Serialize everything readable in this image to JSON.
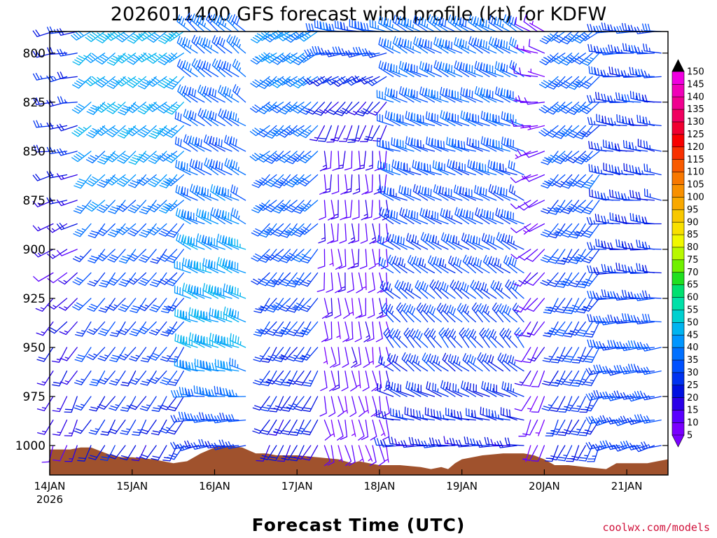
{
  "chart_data": {
    "type": "wind-barb time-height profile",
    "title": "2026011400 GFS forecast wind profile (kt) for KDFW",
    "xlabel": "Forecast Time (UTC)",
    "ylabel": "",
    "credit": "coolwx.com/models",
    "xlim_hours": [
      0,
      180
    ],
    "ylim_hPa": [
      1015,
      789
    ],
    "x_ticks": [
      {
        "label": "14JAN",
        "sublabel": "2026",
        "hour": 0
      },
      {
        "label": "15JAN",
        "sublabel": "",
        "hour": 24
      },
      {
        "label": "16JAN",
        "sublabel": "",
        "hour": 48
      },
      {
        "label": "17JAN",
        "sublabel": "",
        "hour": 72
      },
      {
        "label": "18JAN",
        "sublabel": "",
        "hour": 96
      },
      {
        "label": "19JAN",
        "sublabel": "",
        "hour": 120
      },
      {
        "label": "20JAN",
        "sublabel": "",
        "hour": 144
      },
      {
        "label": "21JAN",
        "sublabel": "",
        "hour": 168
      }
    ],
    "y_ticks": [
      {
        "label": "800",
        "p": 800
      },
      {
        "label": "825",
        "p": 825
      },
      {
        "label": "850",
        "p": 850
      },
      {
        "label": "875",
        "p": 875
      },
      {
        "label": "900",
        "p": 900
      },
      {
        "label": "925",
        "p": 925
      },
      {
        "label": "950",
        "p": 950
      },
      {
        "label": "975",
        "p": 975
      },
      {
        "label": "1000",
        "p": 1000
      }
    ],
    "colorbar": {
      "units": "kt",
      "levels": [
        "5",
        "10",
        "15",
        "20",
        "25",
        "30",
        "35",
        "40",
        "45",
        "50",
        "55",
        "60",
        "65",
        "70",
        "75",
        "80",
        "85",
        "90",
        "95",
        "100",
        "105",
        "110",
        "115",
        "120",
        "125",
        "130",
        "135",
        "140",
        "145",
        "150"
      ],
      "colors": [
        "#7a00ff",
        "#5a00ff",
        "#2a00e8",
        "#0010e0",
        "#0032f0",
        "#0050ff",
        "#0070ff",
        "#0096ff",
        "#00b4f0",
        "#00d0d0",
        "#00e0a8",
        "#00e070",
        "#20e020",
        "#70f000",
        "#b8f800",
        "#f0f800",
        "#f8e000",
        "#f8c800",
        "#f8a800",
        "#f89000",
        "#f87800",
        "#f85a00",
        "#f83000",
        "#f80000",
        "#f00030",
        "#f00060",
        "#f00090",
        "#f000b8",
        "#f000e0"
      ],
      "extend": "both"
    },
    "terrain_color": "#a0522d",
    "surface_pressure_hPa": [
      [
        0,
        1002
      ],
      [
        6,
        1002
      ],
      [
        9,
        1001
      ],
      [
        12,
        1001
      ],
      [
        15,
        1003
      ],
      [
        18,
        1005
      ],
      [
        21,
        1006
      ],
      [
        24,
        1006
      ],
      [
        30,
        1007
      ],
      [
        33,
        1008
      ],
      [
        36,
        1009
      ],
      [
        40,
        1008
      ],
      [
        44,
        1004
      ],
      [
        48,
        1001
      ],
      [
        52,
        1000
      ],
      [
        56,
        1001
      ],
      [
        60,
        1004
      ],
      [
        63,
        1004
      ],
      [
        66,
        1005
      ],
      [
        69,
        1005
      ],
      [
        72,
        1005
      ],
      [
        78,
        1006
      ],
      [
        84,
        1007
      ],
      [
        88,
        1009
      ],
      [
        90,
        1008
      ],
      [
        93,
        1009
      ],
      [
        96,
        1010
      ],
      [
        102,
        1010
      ],
      [
        108,
        1011
      ],
      [
        111,
        1012
      ],
      [
        114,
        1011
      ],
      [
        116,
        1012
      ],
      [
        118,
        1009
      ],
      [
        120,
        1007
      ],
      [
        126,
        1005
      ],
      [
        132,
        1004
      ],
      [
        138,
        1004
      ],
      [
        141,
        1005
      ],
      [
        144,
        1007
      ],
      [
        147,
        1010
      ],
      [
        151,
        1010
      ],
      [
        156,
        1011
      ],
      [
        162,
        1012
      ],
      [
        165,
        1009
      ],
      [
        168,
        1009
      ],
      [
        174,
        1009
      ],
      [
        177,
        1008
      ],
      [
        180,
        1007
      ]
    ],
    "wind_hours": [
      1,
      5,
      8,
      12,
      16,
      19,
      22,
      25,
      28,
      31,
      34,
      37,
      39,
      41,
      43,
      45,
      47,
      49,
      51,
      53,
      55,
      57,
      64,
      66,
      68,
      70,
      72,
      74,
      76,
      78,
      80,
      82,
      84,
      86,
      88,
      90,
      92,
      94,
      96,
      98,
      100,
      102,
      104,
      106,
      108,
      110,
      112,
      114,
      116,
      118,
      120,
      122,
      124,
      126,
      128,
      130,
      132,
      134,
      136,
      138,
      140,
      142,
      144,
      148,
      150,
      152,
      154,
      156,
      158,
      160,
      162,
      164,
      166,
      168,
      170,
      172,
      174,
      176,
      178
    ],
    "wind_levels_hPa": [
      789,
      800,
      812,
      825,
      837,
      850,
      862,
      875,
      887,
      900,
      912,
      925,
      937,
      950,
      962,
      975,
      987,
      1000
    ],
    "segments": [
      {
        "h0": 0,
        "h1": 10,
        "dir": [
          260,
          260,
          240,
          215,
          200
        ],
        "spd": [
          22,
          22,
          12,
          18,
          12
        ]
      },
      {
        "h0": 10,
        "h1": 40,
        "dir": [
          232,
          226,
          221,
          216,
          210
        ],
        "spd": [
          44,
          40,
          30,
          26,
          20
        ]
      },
      {
        "h0": 40,
        "h1": 58,
        "dir": [
          310,
          300,
          295,
          290,
          260
        ],
        "spd": [
          34,
          30,
          40,
          44,
          24
        ]
      },
      {
        "h0": 63,
        "h1": 80,
        "dir": [
          235,
          228,
          222,
          215,
          208
        ],
        "spd": [
          38,
          32,
          30,
          24,
          18
        ]
      },
      {
        "h0": 80,
        "h1": 100,
        "dir": [
          280,
          180,
          175,
          170,
          165
        ],
        "spd": [
          30,
          12,
          10,
          10,
          8
        ]
      },
      {
        "h0": 100,
        "h1": 140,
        "dir": [
          300,
          290,
          300,
          320,
          270
        ],
        "spd": [
          34,
          30,
          28,
          26,
          20
        ]
      },
      {
        "h0": 140,
        "h1": 145,
        "dir": [
          300,
          250,
          230,
          210,
          200
        ],
        "spd": [
          8,
          8,
          10,
          12,
          8
        ]
      },
      {
        "h0": 145,
        "h1": 162,
        "dir": [
          230,
          225,
          215,
          210,
          205
        ],
        "spd": [
          32,
          30,
          28,
          26,
          22
        ]
      },
      {
        "h0": 162,
        "h1": 181,
        "dir": [
          270,
          280,
          275,
          265,
          255
        ],
        "spd": [
          26,
          24,
          22,
          30,
          26
        ]
      }
    ]
  }
}
